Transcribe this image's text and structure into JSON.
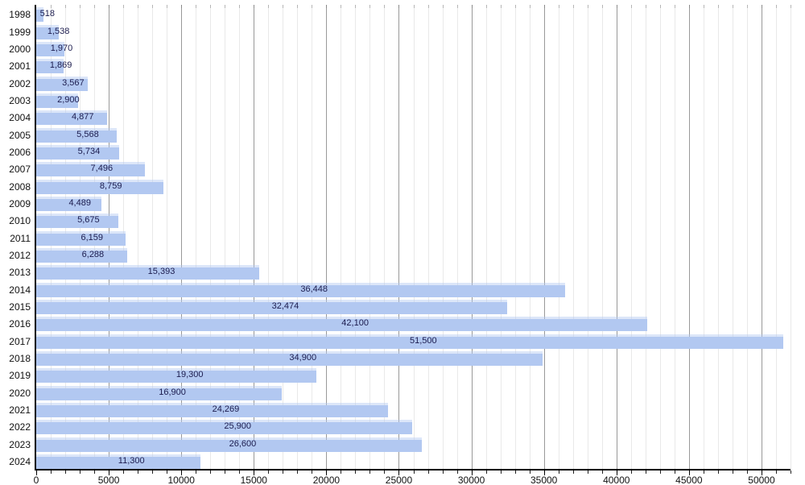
{
  "chart_data": {
    "type": "bar",
    "orientation": "horizontal",
    "title": "",
    "xlabel": "",
    "ylabel": "",
    "categories": [
      "1998",
      "1999",
      "2000",
      "2001",
      "2002",
      "2003",
      "2004",
      "2005",
      "2006",
      "2007",
      "2008",
      "2009",
      "2010",
      "2011",
      "2012",
      "2013",
      "2014",
      "2015",
      "2016",
      "2017",
      "2018",
      "2019",
      "2020",
      "2021",
      "2022",
      "2023",
      "2024"
    ],
    "values": [
      518,
      1538,
      1970,
      1869,
      3567,
      2900,
      4877,
      5568,
      5734,
      7496,
      8759,
      4489,
      5675,
      6159,
      6288,
      15393,
      36448,
      32474,
      42100,
      51500,
      34900,
      19300,
      16900,
      24269,
      25900,
      26600,
      11300
    ],
    "value_labels": [
      "518",
      "1,538",
      "1,970",
      "1,869",
      "3,567",
      "2,900",
      "4,877",
      "5,568",
      "5,734",
      "7,496",
      "8,759",
      "4,489",
      "5,675",
      "6,159",
      "6,288",
      "15,393",
      "36,448",
      "32,474",
      "42,100",
      "51,500",
      "34,900",
      "19,300",
      "16,900",
      "24,269",
      "25,900",
      "26,600",
      "11,300"
    ],
    "xlim": [
      0,
      52000
    ],
    "x_major_step": 5000,
    "x_minor_step": 1000,
    "x_major_ticks": [
      0,
      5000,
      10000,
      15000,
      20000,
      25000,
      30000,
      35000,
      40000,
      45000,
      50000
    ],
    "x_tick_labels": [
      "0",
      "5000",
      "10000",
      "15000",
      "20000",
      "25000",
      "30000",
      "35000",
      "40000",
      "45000",
      "50000"
    ],
    "grid": true,
    "legend": null,
    "colors": {
      "background": "#ffffff",
      "bar_fill": "#b2c8f1",
      "bar_top_highlight": "#cfdcf8",
      "value_label": "#1c1c4e",
      "year_label": "#111111",
      "axis_line": "#000000",
      "tick": "#222222",
      "major_grid": "#999999",
      "minor_grid": "#e9e9e9",
      "tick_label": "#111111"
    }
  }
}
